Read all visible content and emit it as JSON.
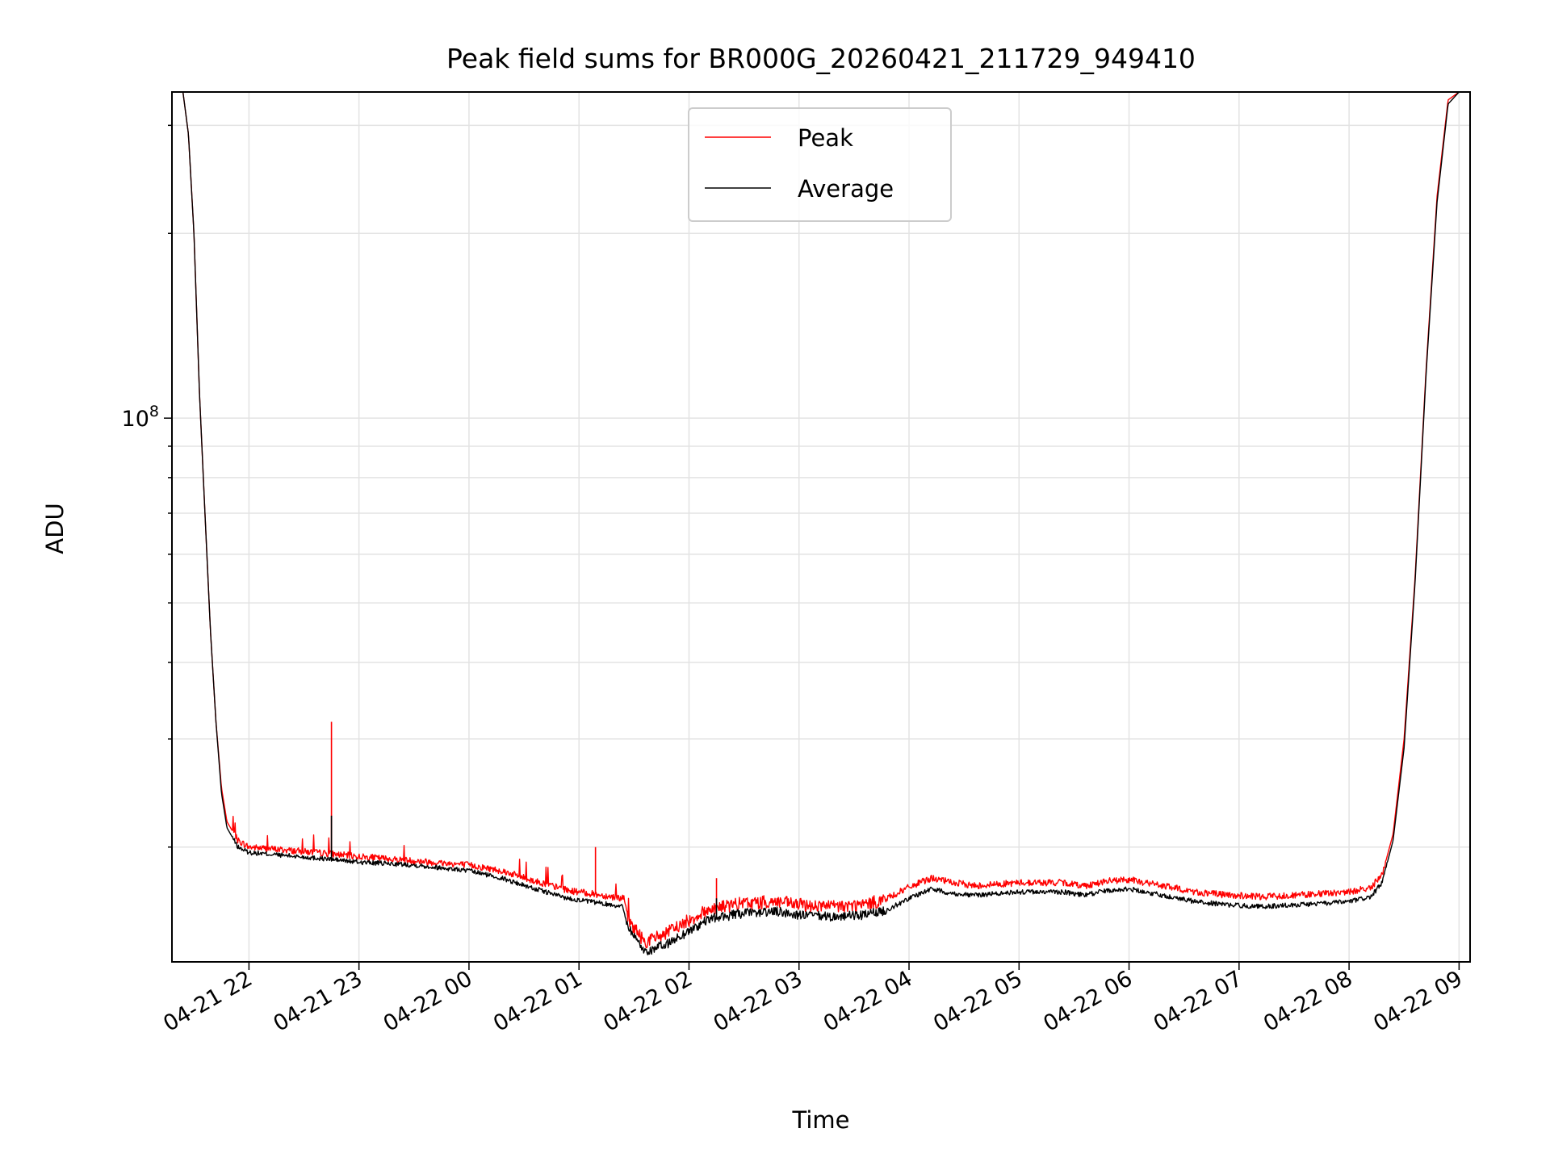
{
  "chart_data": {
    "type": "line",
    "title": "Peak field sums for BR000G_20260421_211729_949410",
    "xlabel": "Time",
    "ylabel": "ADU",
    "yscale": "log",
    "ylim": [
      13000000,
      340000000
    ],
    "xlim_hours": [
      -0.7,
      11.1
    ],
    "grid": true,
    "legend_position": "top-center",
    "x_ticks": [
      {
        "label": "04-21 22",
        "hour": 0
      },
      {
        "label": "04-21 23",
        "hour": 1
      },
      {
        "label": "04-22 00",
        "hour": 2
      },
      {
        "label": "04-22 01",
        "hour": 3
      },
      {
        "label": "04-22 02",
        "hour": 4
      },
      {
        "label": "04-22 03",
        "hour": 5
      },
      {
        "label": "04-22 04",
        "hour": 6
      },
      {
        "label": "04-22 05",
        "hour": 7
      },
      {
        "label": "04-22 06",
        "hour": 8
      },
      {
        "label": "04-22 07",
        "hour": 9
      },
      {
        "label": "04-22 08",
        "hour": 10
      },
      {
        "label": "04-22 09",
        "hour": 11
      }
    ],
    "y_major_ticks": [
      {
        "label": "10",
        "exponent": "8",
        "value": 100000000
      }
    ],
    "y_minor_ticks": [
      20000000,
      30000000,
      40000000,
      50000000,
      60000000,
      70000000,
      80000000,
      90000000,
      200000000,
      300000000
    ],
    "hour_zero_label": "04-21 22",
    "series": [
      {
        "name": "Peak",
        "color": "#ff0000",
        "points": [
          [
            -0.6,
            340000000
          ],
          [
            -0.55,
            290000000
          ],
          [
            -0.5,
            200000000
          ],
          [
            -0.45,
            110000000
          ],
          [
            -0.4,
            70000000
          ],
          [
            -0.35,
            45000000
          ],
          [
            -0.3,
            32000000
          ],
          [
            -0.25,
            25000000
          ],
          [
            -0.2,
            22000000
          ],
          [
            -0.1,
            20500000
          ],
          [
            0.0,
            20000000
          ],
          [
            0.3,
            19800000
          ],
          [
            0.6,
            19600000
          ],
          [
            0.75,
            19500000
          ],
          [
            1.0,
            19300000
          ],
          [
            1.5,
            19000000
          ],
          [
            2.0,
            18700000
          ],
          [
            2.3,
            18300000
          ],
          [
            2.6,
            17600000
          ],
          [
            2.9,
            17000000
          ],
          [
            3.2,
            16700000
          ],
          [
            3.4,
            16500000
          ],
          [
            3.45,
            15200000
          ],
          [
            3.6,
            14000000
          ],
          [
            3.8,
            14500000
          ],
          [
            4.0,
            15200000
          ],
          [
            4.2,
            15900000
          ],
          [
            4.5,
            16200000
          ],
          [
            4.8,
            16300000
          ],
          [
            5.0,
            16100000
          ],
          [
            5.3,
            16000000
          ],
          [
            5.6,
            16100000
          ],
          [
            5.8,
            16500000
          ],
          [
            6.0,
            17200000
          ],
          [
            6.2,
            17800000
          ],
          [
            6.4,
            17500000
          ],
          [
            6.6,
            17300000
          ],
          [
            7.0,
            17500000
          ],
          [
            7.4,
            17500000
          ],
          [
            7.6,
            17300000
          ],
          [
            7.8,
            17600000
          ],
          [
            8.0,
            17700000
          ],
          [
            8.3,
            17300000
          ],
          [
            8.6,
            16900000
          ],
          [
            8.9,
            16700000
          ],
          [
            9.2,
            16600000
          ],
          [
            9.5,
            16700000
          ],
          [
            9.8,
            16800000
          ],
          [
            10.0,
            16900000
          ],
          [
            10.2,
            17200000
          ],
          [
            10.3,
            18000000
          ],
          [
            10.4,
            21000000
          ],
          [
            10.5,
            30000000
          ],
          [
            10.6,
            55000000
          ],
          [
            10.7,
            120000000
          ],
          [
            10.8,
            230000000
          ],
          [
            10.9,
            330000000
          ],
          [
            11.0,
            340000000
          ]
        ]
      },
      {
        "name": "Average",
        "color": "#000000",
        "points": [
          [
            -0.6,
            340000000
          ],
          [
            -0.55,
            290000000
          ],
          [
            -0.5,
            200000000
          ],
          [
            -0.45,
            110000000
          ],
          [
            -0.4,
            70000000
          ],
          [
            -0.35,
            45000000
          ],
          [
            -0.3,
            32000000
          ],
          [
            -0.25,
            24500000
          ],
          [
            -0.2,
            21500000
          ],
          [
            -0.1,
            20000000
          ],
          [
            0.0,
            19600000
          ],
          [
            0.3,
            19400000
          ],
          [
            0.6,
            19200000
          ],
          [
            0.75,
            19100000
          ],
          [
            1.0,
            18900000
          ],
          [
            1.5,
            18700000
          ],
          [
            2.0,
            18300000
          ],
          [
            2.3,
            17800000
          ],
          [
            2.6,
            17100000
          ],
          [
            2.9,
            16500000
          ],
          [
            3.2,
            16200000
          ],
          [
            3.4,
            16000000
          ],
          [
            3.45,
            14800000
          ],
          [
            3.6,
            13500000
          ],
          [
            3.8,
            13900000
          ],
          [
            4.0,
            14600000
          ],
          [
            4.2,
            15300000
          ],
          [
            4.5,
            15600000
          ],
          [
            4.8,
            15700000
          ],
          [
            5.0,
            15500000
          ],
          [
            5.3,
            15400000
          ],
          [
            5.6,
            15500000
          ],
          [
            5.8,
            15800000
          ],
          [
            6.0,
            16500000
          ],
          [
            6.2,
            17100000
          ],
          [
            6.4,
            16800000
          ],
          [
            6.6,
            16700000
          ],
          [
            7.0,
            16900000
          ],
          [
            7.4,
            16900000
          ],
          [
            7.6,
            16700000
          ],
          [
            7.8,
            17000000
          ],
          [
            8.0,
            17100000
          ],
          [
            8.3,
            16700000
          ],
          [
            8.6,
            16300000
          ],
          [
            8.9,
            16100000
          ],
          [
            9.2,
            16000000
          ],
          [
            9.5,
            16100000
          ],
          [
            9.8,
            16200000
          ],
          [
            10.0,
            16300000
          ],
          [
            10.2,
            16600000
          ],
          [
            10.3,
            17500000
          ],
          [
            10.4,
            20500000
          ],
          [
            10.5,
            29000000
          ],
          [
            10.6,
            54000000
          ],
          [
            10.7,
            118000000
          ],
          [
            10.8,
            225000000
          ],
          [
            10.9,
            325000000
          ],
          [
            11.0,
            340000000
          ]
        ]
      }
    ],
    "spikes": [
      {
        "series": "Peak",
        "hour": 0.75,
        "value": 32000000
      },
      {
        "series": "Average",
        "hour": 0.75,
        "value": 22500000
      },
      {
        "series": "Peak",
        "hour": 3.15,
        "value": 20000000
      },
      {
        "series": "Peak",
        "hour": 4.25,
        "value": 17800000
      },
      {
        "series": "Average",
        "hour": 4.25,
        "value": 16500000
      }
    ]
  }
}
